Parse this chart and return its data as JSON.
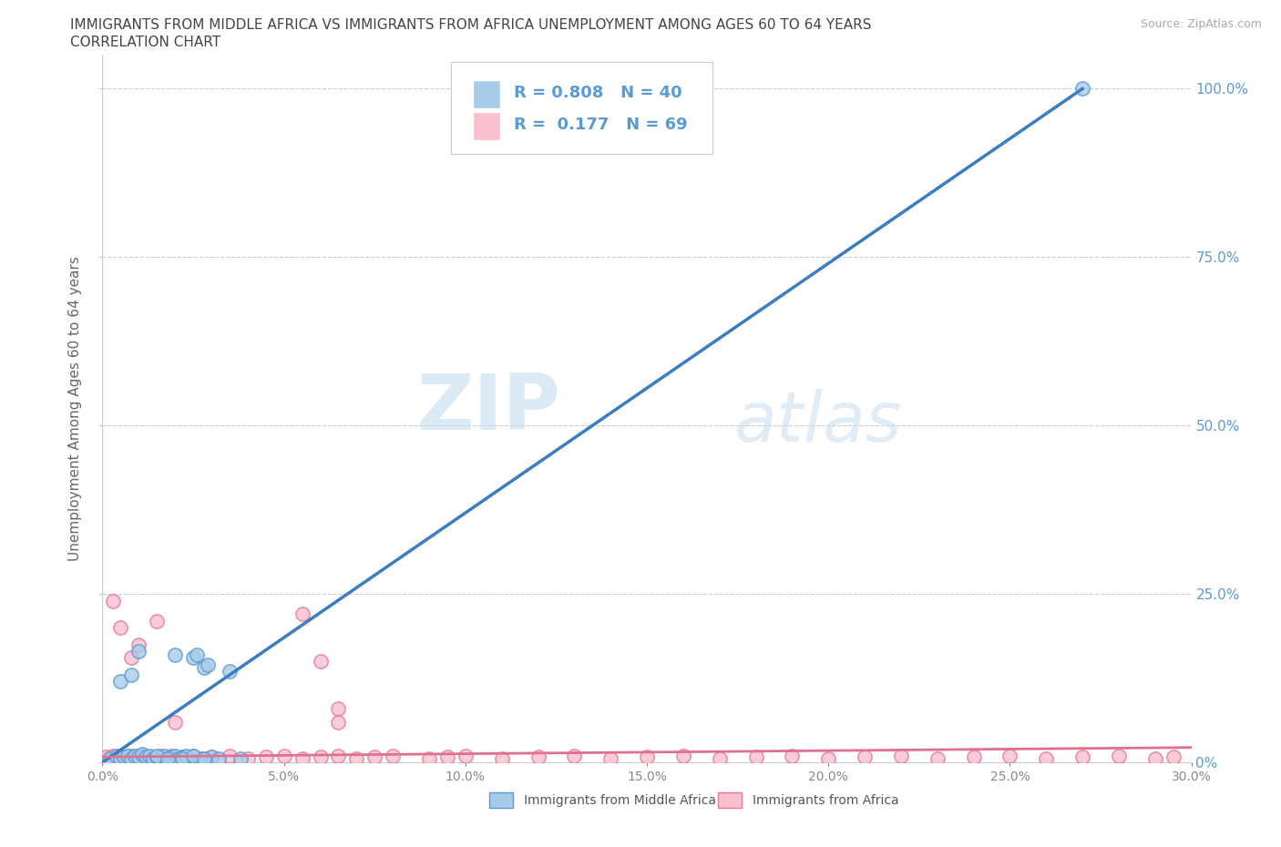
{
  "title_line1": "IMMIGRANTS FROM MIDDLE AFRICA VS IMMIGRANTS FROM AFRICA UNEMPLOYMENT AMONG AGES 60 TO 64 YEARS",
  "title_line2": "CORRELATION CHART",
  "source_text": "Source: ZipAtlas.com",
  "ylabel": "Unemployment Among Ages 60 to 64 years",
  "xlim": [
    0.0,
    0.3
  ],
  "ylim": [
    0.0,
    1.05
  ],
  "xticks": [
    0.0,
    0.05,
    0.1,
    0.15,
    0.2,
    0.25,
    0.3
  ],
  "xticklabels": [
    "0.0%",
    "5.0%",
    "10.0%",
    "15.0%",
    "20.0%",
    "25.0%",
    "30.0%"
  ],
  "yticks": [
    0.0,
    0.25,
    0.5,
    0.75,
    1.0
  ],
  "yticklabels": [
    "0%",
    "25.0%",
    "50.0%",
    "75.0%",
    "100.0%"
  ],
  "blue_color": "#a8cce8",
  "pink_color": "#f9c0cf",
  "blue_edge_color": "#5b9bd5",
  "pink_edge_color": "#e87aa0",
  "blue_line_color": "#3d7dbf",
  "pink_line_color": "#e07090",
  "R_blue": 0.808,
  "N_blue": 40,
  "R_pink": 0.177,
  "N_pink": 69,
  "legend_label_blue": "Immigrants from Middle Africa",
  "legend_label_pink": "Immigrants from Africa",
  "watermark_zip": "ZIP",
  "watermark_atlas": "atlas",
  "background_color": "#ffffff",
  "grid_color": "#cccccc",
  "ytick_color": "#5b9bd5",
  "xtick_color": "#888888",
  "blue_scatter_x": [
    0.002,
    0.004,
    0.005,
    0.006,
    0.007,
    0.008,
    0.009,
    0.01,
    0.011,
    0.012,
    0.013,
    0.014,
    0.015,
    0.016,
    0.017,
    0.018,
    0.019,
    0.02,
    0.021,
    0.022,
    0.023,
    0.025,
    0.026,
    0.027,
    0.028,
    0.029,
    0.03,
    0.032,
    0.035,
    0.038,
    0.005,
    0.008,
    0.01,
    0.015,
    0.018,
    0.02,
    0.022,
    0.025,
    0.028,
    0.27
  ],
  "blue_scatter_y": [
    0.005,
    0.01,
    0.005,
    0.008,
    0.01,
    0.005,
    0.01,
    0.008,
    0.012,
    0.008,
    0.01,
    0.005,
    0.008,
    0.005,
    0.01,
    0.005,
    0.008,
    0.01,
    0.005,
    0.008,
    0.01,
    0.155,
    0.16,
    0.005,
    0.14,
    0.145,
    0.008,
    0.005,
    0.135,
    0.005,
    0.12,
    0.13,
    0.165,
    0.01,
    0.005,
    0.16,
    0.005,
    0.01,
    0.005,
    1.0
  ],
  "pink_scatter_x": [
    0.001,
    0.002,
    0.003,
    0.003,
    0.004,
    0.005,
    0.005,
    0.006,
    0.007,
    0.008,
    0.009,
    0.01,
    0.011,
    0.012,
    0.013,
    0.014,
    0.015,
    0.016,
    0.017,
    0.018,
    0.019,
    0.02,
    0.022,
    0.025,
    0.028,
    0.03,
    0.035,
    0.04,
    0.045,
    0.05,
    0.055,
    0.06,
    0.065,
    0.07,
    0.075,
    0.08,
    0.09,
    0.095,
    0.1,
    0.11,
    0.12,
    0.13,
    0.14,
    0.15,
    0.16,
    0.17,
    0.18,
    0.19,
    0.2,
    0.21,
    0.22,
    0.23,
    0.24,
    0.25,
    0.26,
    0.27,
    0.28,
    0.29,
    0.295,
    0.003,
    0.005,
    0.008,
    0.01,
    0.015,
    0.02,
    0.055,
    0.06,
    0.065,
    0.065
  ],
  "pink_scatter_y": [
    0.008,
    0.005,
    0.008,
    0.01,
    0.005,
    0.008,
    0.01,
    0.005,
    0.008,
    0.01,
    0.005,
    0.008,
    0.01,
    0.005,
    0.008,
    0.005,
    0.008,
    0.01,
    0.005,
    0.008,
    0.01,
    0.005,
    0.008,
    0.01,
    0.005,
    0.008,
    0.01,
    0.005,
    0.008,
    0.01,
    0.005,
    0.008,
    0.01,
    0.005,
    0.008,
    0.01,
    0.005,
    0.008,
    0.01,
    0.005,
    0.008,
    0.01,
    0.005,
    0.008,
    0.01,
    0.005,
    0.008,
    0.01,
    0.005,
    0.008,
    0.01,
    0.005,
    0.008,
    0.01,
    0.005,
    0.008,
    0.01,
    0.005,
    0.008,
    0.24,
    0.2,
    0.155,
    0.175,
    0.21,
    0.06,
    0.22,
    0.15,
    0.06,
    0.08
  ]
}
